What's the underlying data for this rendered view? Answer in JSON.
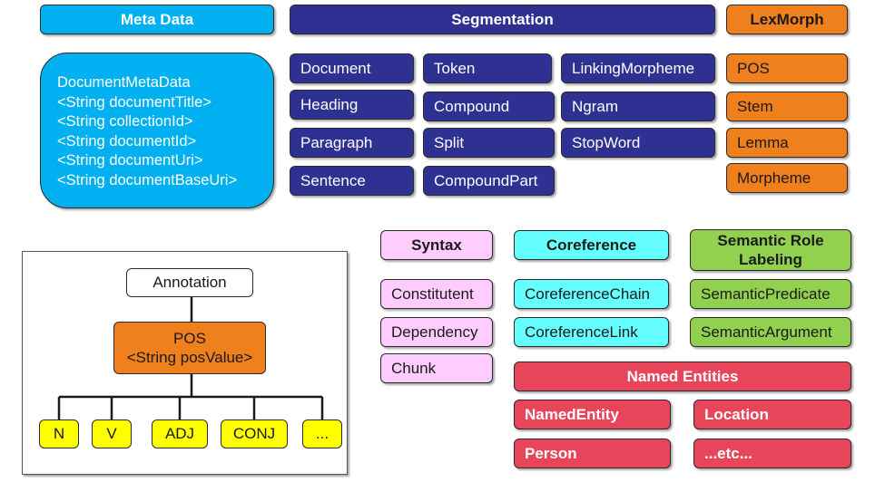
{
  "meta_data": {
    "header": "Meta Data",
    "lines": [
      "DocumentMetaData",
      "<String documentTitle>",
      "<String collectionId>",
      "<String documentId>",
      "<String documentUri>",
      "<String documentBaseUri>"
    ]
  },
  "segmentation": {
    "header": "Segmentation",
    "items": [
      "Document",
      "Token",
      "LinkingMorpheme",
      "Heading",
      "Compound",
      "Ngram",
      "Paragraph",
      "Split",
      "StopWord",
      "Sentence",
      "CompoundPart"
    ]
  },
  "lexmorph": {
    "header": "LexMorph",
    "items": [
      "POS",
      "Stem",
      "Lemma",
      "Morpheme"
    ]
  },
  "syntax": {
    "header": "Syntax",
    "items": [
      "Constitutent",
      "Dependency",
      "Chunk"
    ]
  },
  "coreference": {
    "header": "Coreference",
    "items": [
      "CoreferenceChain",
      "CoreferenceLink"
    ]
  },
  "semantic_role_labeling": {
    "header_line1": "Semantic Role",
    "header_line2": "Labeling",
    "items": [
      "SemanticPredicate",
      "SemanticArgument"
    ]
  },
  "named_entities": {
    "header": "Named Entities",
    "items": [
      "NamedEntity",
      "Location",
      "Person",
      "...etc..."
    ]
  },
  "example_tree": {
    "root": "Annotation",
    "node_line1": "POS",
    "node_line2": "<String posValue>",
    "leaves": [
      "N",
      "V",
      "ADJ",
      "CONJ",
      "..."
    ]
  },
  "colors": {
    "segmentation": "#2e3192",
    "meta_data": "#00b0f0",
    "lexmorph": "#f07f1e",
    "syntax": "#ffccff",
    "coreference": "#66ffff",
    "semantic_role_labeling": "#92d050",
    "named_entities": "#e8445a",
    "example_leaf": "#ffff00"
  }
}
